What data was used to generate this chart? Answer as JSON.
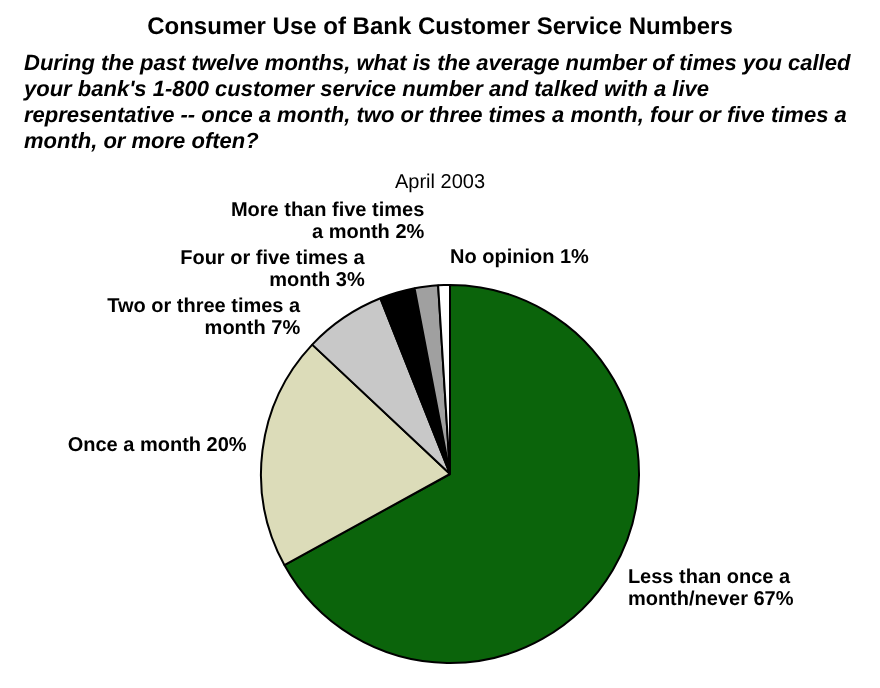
{
  "chart_data": {
    "type": "pie",
    "title": "Consumer Use of Bank Customer Service Numbers",
    "subtitle": "During the past twelve months, what is the average number of times you called your bank's 1-800 customer service number and talked with a live representative -- once a month, two or three times a month, four or five times a month, or more often?",
    "annotations": [
      "April 2003"
    ],
    "categories": [
      "Less than once a month/never",
      "Once a month",
      "Two or three times a month",
      "Four or five times a month",
      "More than five times a month",
      "No opinion"
    ],
    "values": [
      67,
      20,
      7,
      3,
      2,
      1
    ],
    "colors": [
      "#0b640b",
      "#dcdcb9",
      "#c8c8c8",
      "#000000",
      "#a0a0a0",
      "#ffffff"
    ],
    "value_labels": [
      "67%",
      "20%",
      "7%",
      "3%",
      "2%",
      "1%"
    ]
  }
}
